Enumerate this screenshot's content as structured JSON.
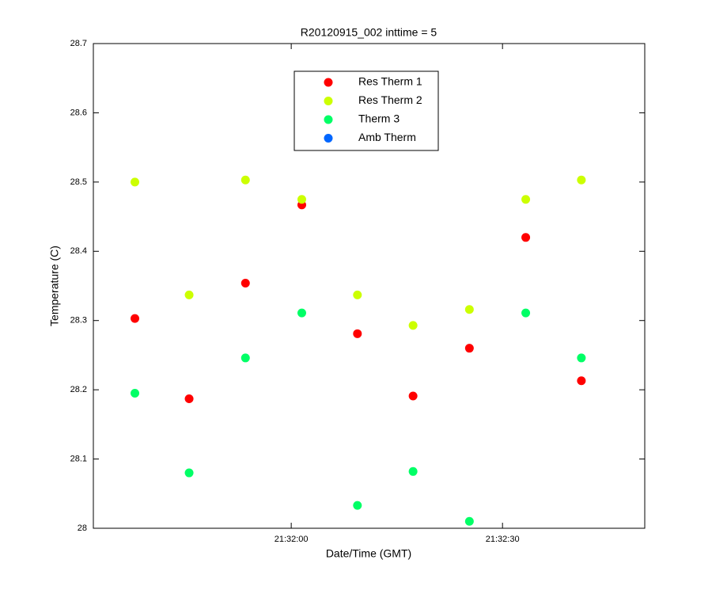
{
  "chart_data": {
    "type": "scatter",
    "title": "R20120915_002 inttime = 5",
    "xlabel": "Date/Time (GMT)",
    "ylabel": "Temperature (C)",
    "x": [
      77497.8,
      77505.5,
      77513.5,
      77521.5,
      77529.4,
      77537.3,
      77545.3,
      77553.3,
      77561.2
    ],
    "series": [
      {
        "name": "Res Therm 1",
        "color": "#ff0000",
        "values": [
          28.303,
          28.187,
          28.354,
          28.467,
          28.281,
          28.191,
          28.26,
          28.42,
          28.213
        ]
      },
      {
        "name": "Res Therm 2",
        "color": "#ccff00",
        "values": [
          28.5,
          28.337,
          28.503,
          28.475,
          28.337,
          28.293,
          28.316,
          28.475,
          28.503
        ]
      },
      {
        "name": "Therm 3",
        "color": "#00ff66",
        "values": [
          28.195,
          28.08,
          28.246,
          28.311,
          28.033,
          28.082,
          28.01,
          28.311,
          28.246
        ]
      },
      {
        "name": "Amb Therm",
        "color": "#0066ff",
        "values": [
          null,
          null,
          null,
          null,
          null,
          null,
          null,
          null,
          null
        ]
      }
    ],
    "xlim": [
      77491.9,
      77570.2
    ],
    "xticks": [
      {
        "value": 77520,
        "label": "21:32:00"
      },
      {
        "value": 77550,
        "label": "21:32:30"
      }
    ],
    "ylim": [
      28,
      28.7
    ],
    "yticks": [
      28,
      28.1,
      28.2,
      28.3,
      28.4,
      28.5,
      28.6,
      28.7
    ],
    "legend": "top-center"
  }
}
